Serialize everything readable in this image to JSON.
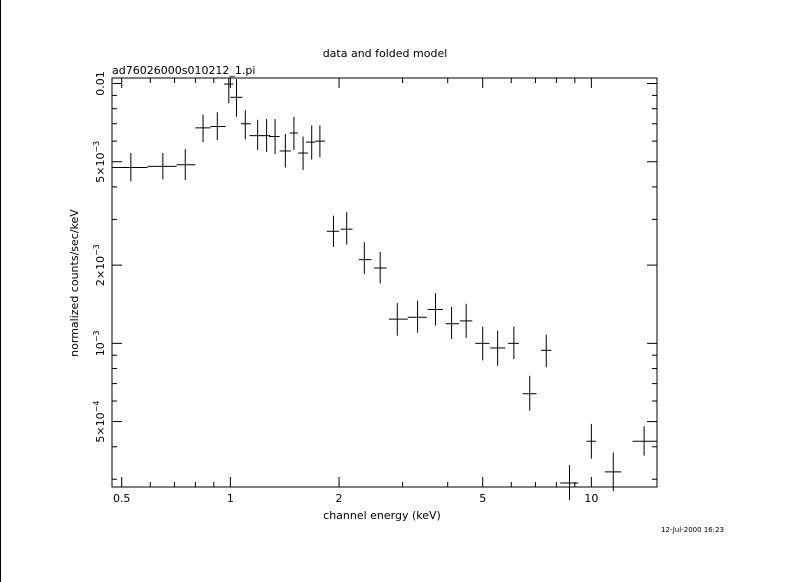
{
  "chart_data": {
    "type": "scatter",
    "title": "data and folded model",
    "subtitle": "ad76026000s010212_1.pi",
    "xlabel": "channel energy (keV)",
    "ylabel": "normalized counts/sec/keV",
    "xscale": "log",
    "yscale": "log",
    "xlim": [
      0.47,
      15.2
    ],
    "ylim": [
      0.00028,
      0.0105
    ],
    "x_tick_labels": [
      "0.5",
      "1",
      "2",
      "5",
      "10"
    ],
    "y_tick_labels": [
      {
        "value": 0.01,
        "mantissa": "0.01",
        "exp": ""
      },
      {
        "value": 0.005,
        "mantissa": "5×10",
        "exp": "−3"
      },
      {
        "value": 0.002,
        "mantissa": "2×10",
        "exp": "−3"
      },
      {
        "value": 0.001,
        "mantissa": "10",
        "exp": "−3"
      },
      {
        "value": 0.0005,
        "mantissa": "5×10",
        "exp": "−4"
      }
    ],
    "timestamp": "12-Jul-2000 16:23",
    "points": [
      {
        "x": 0.53,
        "xlo": 0.47,
        "xhi": 0.59,
        "y": 0.00475,
        "ylo": 0.0042,
        "yhi": 0.0054
      },
      {
        "x": 0.65,
        "xlo": 0.59,
        "xhi": 0.71,
        "y": 0.0048,
        "ylo": 0.00428,
        "yhi": 0.0054
      },
      {
        "x": 0.75,
        "xlo": 0.71,
        "xhi": 0.8,
        "y": 0.00487,
        "ylo": 0.00425,
        "yhi": 0.0056
      },
      {
        "x": 0.84,
        "xlo": 0.8,
        "xhi": 0.88,
        "y": 0.00675,
        "ylo": 0.00595,
        "yhi": 0.0076
      },
      {
        "x": 0.92,
        "xlo": 0.88,
        "xhi": 0.97,
        "y": 0.00683,
        "ylo": 0.00605,
        "yhi": 0.00775
      },
      {
        "x": 0.99,
        "xlo": 0.96,
        "xhi": 1.02,
        "y": 0.00995,
        "ylo": 0.0084,
        "yhi": 0.0105
      },
      {
        "x": 1.04,
        "xlo": 1.0,
        "xhi": 1.08,
        "y": 0.00885,
        "ylo": 0.00745,
        "yhi": 0.0104
      },
      {
        "x": 1.1,
        "xlo": 1.07,
        "xhi": 1.14,
        "y": 0.007,
        "ylo": 0.0061,
        "yhi": 0.0079
      },
      {
        "x": 1.19,
        "xlo": 1.13,
        "xhi": 1.23,
        "y": 0.0063,
        "ylo": 0.00555,
        "yhi": 0.00725
      },
      {
        "x": 1.26,
        "xlo": 1.22,
        "xhi": 1.29,
        "y": 0.0063,
        "ylo": 0.00545,
        "yhi": 0.0073
      },
      {
        "x": 1.33,
        "xlo": 1.28,
        "xhi": 1.37,
        "y": 0.00625,
        "ylo": 0.00535,
        "yhi": 0.0073
      },
      {
        "x": 1.42,
        "xlo": 1.37,
        "xhi": 1.47,
        "y": 0.0055,
        "ylo": 0.00475,
        "yhi": 0.0064
      },
      {
        "x": 1.5,
        "xlo": 1.46,
        "xhi": 1.54,
        "y": 0.00645,
        "ylo": 0.00555,
        "yhi": 0.00745
      },
      {
        "x": 1.59,
        "xlo": 1.54,
        "xhi": 1.64,
        "y": 0.0054,
        "ylo": 0.00465,
        "yhi": 0.00625
      },
      {
        "x": 1.68,
        "xlo": 1.62,
        "xhi": 1.72,
        "y": 0.00595,
        "ylo": 0.0051,
        "yhi": 0.0069
      },
      {
        "x": 1.77,
        "xlo": 1.72,
        "xhi": 1.83,
        "y": 0.006,
        "ylo": 0.0052,
        "yhi": 0.0069
      },
      {
        "x": 1.93,
        "xlo": 1.85,
        "xhi": 2.0,
        "y": 0.0027,
        "ylo": 0.00235,
        "yhi": 0.0031
      },
      {
        "x": 2.1,
        "xlo": 2.02,
        "xhi": 2.18,
        "y": 0.00275,
        "ylo": 0.0024,
        "yhi": 0.0032
      },
      {
        "x": 2.35,
        "xlo": 2.27,
        "xhi": 2.46,
        "y": 0.0021,
        "ylo": 0.00185,
        "yhi": 0.00245
      },
      {
        "x": 2.6,
        "xlo": 2.5,
        "xhi": 2.71,
        "y": 0.00195,
        "ylo": 0.0017,
        "yhi": 0.00225
      },
      {
        "x": 2.9,
        "xlo": 2.75,
        "xhi": 3.1,
        "y": 0.00124,
        "ylo": 0.00107,
        "yhi": 0.00143
      },
      {
        "x": 3.3,
        "xlo": 3.1,
        "xhi": 3.5,
        "y": 0.00126,
        "ylo": 0.0011,
        "yhi": 0.00146
      },
      {
        "x": 3.7,
        "xlo": 3.52,
        "xhi": 3.88,
        "y": 0.00135,
        "ylo": 0.00117,
        "yhi": 0.00156
      },
      {
        "x": 4.1,
        "xlo": 3.95,
        "xhi": 4.3,
        "y": 0.00119,
        "ylo": 0.00104,
        "yhi": 0.00138
      },
      {
        "x": 4.5,
        "xlo": 4.32,
        "xhi": 4.68,
        "y": 0.00122,
        "ylo": 0.00105,
        "yhi": 0.00142
      },
      {
        "x": 5.0,
        "xlo": 4.77,
        "xhi": 5.22,
        "y": 0.001,
        "ylo": 0.00086,
        "yhi": 0.00116
      },
      {
        "x": 5.5,
        "xlo": 5.25,
        "xhi": 5.78,
        "y": 0.00096,
        "ylo": 0.00082,
        "yhi": 0.00112
      },
      {
        "x": 6.1,
        "xlo": 5.88,
        "xhi": 6.3,
        "y": 0.001,
        "ylo": 0.00087,
        "yhi": 0.00116
      },
      {
        "x": 6.75,
        "xlo": 6.45,
        "xhi": 7.05,
        "y": 0.00064,
        "ylo": 0.00055,
        "yhi": 0.00075
      },
      {
        "x": 7.5,
        "xlo": 7.25,
        "xhi": 7.75,
        "y": 0.00094,
        "ylo": 0.00081,
        "yhi": 0.00108
      },
      {
        "x": 8.7,
        "xlo": 8.2,
        "xhi": 9.2,
        "y": 0.00029,
        "ylo": 0.00025,
        "yhi": 0.00034
      },
      {
        "x": 10.0,
        "xlo": 9.7,
        "xhi": 10.3,
        "y": 0.00042,
        "ylo": 0.00036,
        "yhi": 0.00049
      },
      {
        "x": 11.5,
        "xlo": 10.9,
        "xhi": 12.1,
        "y": 0.00032,
        "ylo": 0.00027,
        "yhi": 0.00038
      },
      {
        "x": 14.0,
        "xlo": 13.0,
        "xhi": 15.2,
        "y": 0.00042,
        "ylo": 0.00037,
        "yhi": 0.00048
      }
    ]
  }
}
